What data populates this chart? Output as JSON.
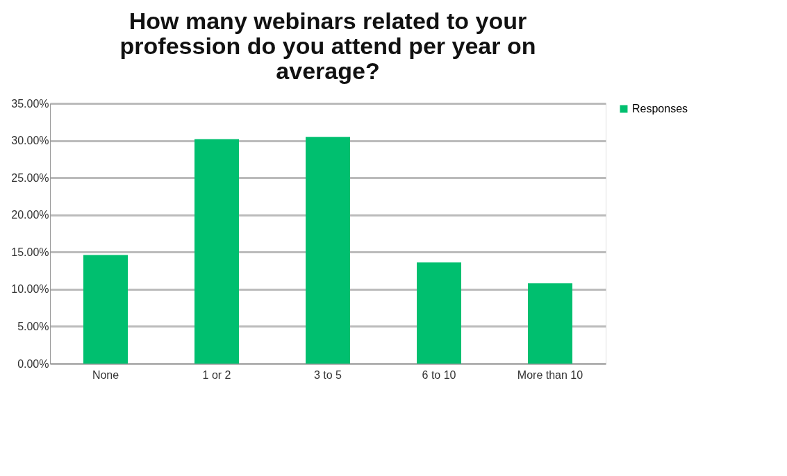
{
  "chart_data": {
    "type": "bar",
    "title": "How many webinars related to your profession do you attend per year on average?",
    "categories": [
      "None",
      "1 or 2",
      "3 to 5",
      "6 to 10",
      "More than 10"
    ],
    "series": [
      {
        "name": "Responses",
        "color": "#00bf6f",
        "values": [
          14.6,
          30.2,
          30.5,
          13.6,
          10.8
        ]
      }
    ],
    "ylim": [
      0,
      35
    ],
    "yticks": [
      {
        "value": 0,
        "label": "0.00%"
      },
      {
        "value": 5,
        "label": "5.00%"
      },
      {
        "value": 10,
        "label": "10.00%"
      },
      {
        "value": 15,
        "label": "15.00%"
      },
      {
        "value": 20,
        "label": "20.00%"
      },
      {
        "value": 25,
        "label": "25.00%"
      },
      {
        "value": 30,
        "label": "30.00%"
      },
      {
        "value": 35,
        "label": "35.00%"
      }
    ],
    "grid": "y",
    "legend": "right"
  }
}
